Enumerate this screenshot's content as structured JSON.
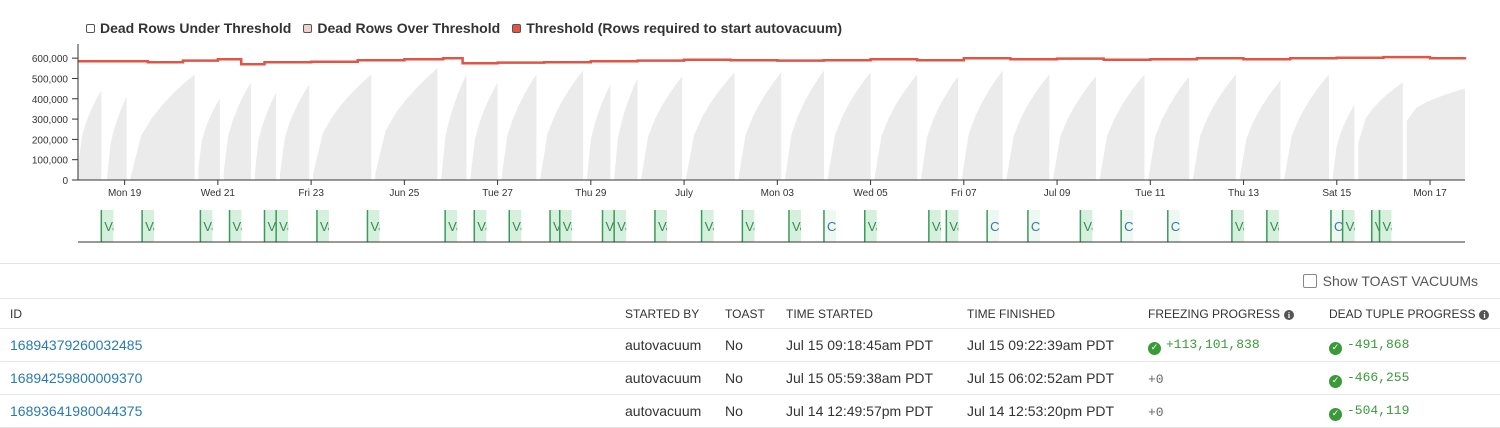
{
  "colors": {
    "under_threshold": "#ebebeb",
    "over_threshold": "#f0cfcf",
    "threshold_line": "#e05545",
    "vacuum_marker_fill": "#d6f0de",
    "vacuum_marker_stroke": "#3a9a5a",
    "link": "#2a7ab0",
    "success": "#3a9a3a"
  },
  "legend": [
    {
      "label": "Dead Rows Under Threshold",
      "color": "#ffffff"
    },
    {
      "label": "Dead Rows Over Threshold",
      "color": "#f0cfcf"
    },
    {
      "label": "Threshold (Rows required to start autovacuum)",
      "color": "#e05545"
    }
  ],
  "chart_data": {
    "type": "area",
    "ylim": [
      0,
      650000
    ],
    "y_ticks": [
      0,
      100000,
      200000,
      300000,
      400000,
      500000,
      600000
    ],
    "y_tick_labels": [
      "0",
      "100,000",
      "200,000",
      "300,000",
      "400,000",
      "500,000",
      "600,000"
    ],
    "x_start": "2023-06-18",
    "x_end": "2023-07-17 18:00",
    "x_ticks": [
      "2023-06-19",
      "2023-06-21",
      "2023-06-23",
      "2023-06-25",
      "2023-06-27",
      "2023-06-29",
      "2023-07-01",
      "2023-07-03",
      "2023-07-05",
      "2023-07-07",
      "2023-07-09",
      "2023-07-11",
      "2023-07-13",
      "2023-07-15",
      "2023-07-17"
    ],
    "x_tick_labels": [
      "Mon 19",
      "Wed 21",
      "Fri 23",
      "Jun 25",
      "Tue 27",
      "Thu 29",
      "July",
      "Mon 03",
      "Wed 05",
      "Fri 07",
      "Jul 09",
      "Tue 11",
      "Thu 13",
      "Sat 15",
      "Mon 17"
    ],
    "threshold": {
      "name": "Threshold (Rows required to start autovacuum)",
      "points": [
        [
          "2023-06-18 00:00",
          585000
        ],
        [
          "2023-06-19 12:00",
          580000
        ],
        [
          "2023-06-20 06:00",
          588000
        ],
        [
          "2023-06-21 00:00",
          595000
        ],
        [
          "2023-06-21 12:00",
          570000
        ],
        [
          "2023-06-22 00:00",
          580000
        ],
        [
          "2023-06-23 00:00",
          582000
        ],
        [
          "2023-06-24 00:00",
          590000
        ],
        [
          "2023-06-25 00:00",
          595000
        ],
        [
          "2023-06-25 20:00",
          600000
        ],
        [
          "2023-06-26 06:00",
          575000
        ],
        [
          "2023-06-27 00:00",
          578000
        ],
        [
          "2023-06-28 00:00",
          580000
        ],
        [
          "2023-06-29 00:00",
          585000
        ],
        [
          "2023-06-30 00:00",
          588000
        ],
        [
          "2023-07-01 00:00",
          592000
        ],
        [
          "2023-07-02 00:00",
          590000
        ],
        [
          "2023-07-03 00:00",
          588000
        ],
        [
          "2023-07-04 00:00",
          590000
        ],
        [
          "2023-07-05 00:00",
          595000
        ],
        [
          "2023-07-06 00:00",
          590000
        ],
        [
          "2023-07-07 00:00",
          600000
        ],
        [
          "2023-07-08 00:00",
          595000
        ],
        [
          "2023-07-09 00:00",
          598000
        ],
        [
          "2023-07-10 00:00",
          592000
        ],
        [
          "2023-07-11 00:00",
          595000
        ],
        [
          "2023-07-12 00:00",
          600000
        ],
        [
          "2023-07-13 00:00",
          595000
        ],
        [
          "2023-07-14 00:00",
          600000
        ],
        [
          "2023-07-15 00:00",
          602000
        ],
        [
          "2023-07-16 00:00",
          605000
        ],
        [
          "2023-07-17 00:00",
          600000
        ],
        [
          "2023-07-17 18:00",
          605000
        ]
      ]
    },
    "dead_rows_cycles": [
      [
        "2023-06-18 00:00",
        "2023-06-18 12:00",
        60000,
        440000
      ],
      [
        "2023-06-18 15:00",
        "2023-06-19 01:00",
        10000,
        410000
      ],
      [
        "2023-06-19 03:00",
        "2023-06-20 12:00",
        10000,
        520000
      ],
      [
        "2023-06-20 14:00",
        "2023-06-21 01:00",
        60000,
        400000
      ],
      [
        "2023-06-21 03:00",
        "2023-06-21 17:00",
        40000,
        480000
      ],
      [
        "2023-06-21 19:00",
        "2023-06-22 06:00",
        30000,
        430000
      ],
      [
        "2023-06-22 08:00",
        "2023-06-22 23:00",
        30000,
        470000
      ],
      [
        "2023-06-23 01:00",
        "2023-06-24 07:00",
        30000,
        520000
      ],
      [
        "2023-06-24 09:00",
        "2023-06-25 17:00",
        30000,
        550000
      ],
      [
        "2023-06-25 19:00",
        "2023-06-26 08:00",
        10000,
        520000
      ],
      [
        "2023-06-26 10:00",
        "2023-06-27 00:00",
        10000,
        480000
      ],
      [
        "2023-06-27 02:00",
        "2023-06-27 20:00",
        10000,
        520000
      ],
      [
        "2023-06-27 22:00",
        "2023-06-28 20:00",
        10000,
        540000
      ],
      [
        "2023-06-28 22:00",
        "2023-06-29 10:00",
        10000,
        470000
      ],
      [
        "2023-06-29 12:00",
        "2023-06-30 00:00",
        10000,
        500000
      ],
      [
        "2023-06-30 02:00",
        "2023-06-30 23:00",
        10000,
        510000
      ],
      [
        "2023-07-01 01:00",
        "2023-07-02 02:00",
        10000,
        530000
      ],
      [
        "2023-07-02 04:00",
        "2023-07-03 02:00",
        10000,
        530000
      ],
      [
        "2023-07-03 04:00",
        "2023-07-04 00:00",
        10000,
        540000
      ],
      [
        "2023-07-04 02:00",
        "2023-07-05 00:00",
        10000,
        530000
      ],
      [
        "2023-07-05 02:00",
        "2023-07-06 00:00",
        10000,
        520000
      ],
      [
        "2023-07-06 02:00",
        "2023-07-06 21:00",
        10000,
        510000
      ],
      [
        "2023-07-06 23:00",
        "2023-07-07 20:00",
        10000,
        540000
      ],
      [
        "2023-07-07 22:00",
        "2023-07-08 20:00",
        10000,
        520000
      ],
      [
        "2023-07-08 22:00",
        "2023-07-09 20:00",
        10000,
        510000
      ],
      [
        "2023-07-09 22:00",
        "2023-07-10 21:00",
        10000,
        520000
      ],
      [
        "2023-07-10 23:00",
        "2023-07-11 20:00",
        10000,
        510000
      ],
      [
        "2023-07-11 22:00",
        "2023-07-12 20:00",
        10000,
        520000
      ],
      [
        "2023-07-12 22:00",
        "2023-07-13 19:00",
        10000,
        490000
      ],
      [
        "2023-07-13 21:00",
        "2023-07-14 20:00",
        10000,
        520000
      ],
      [
        "2023-07-14 22:00",
        "2023-07-15 09:00",
        20000,
        370000
      ],
      [
        "2023-07-15 11:00",
        "2023-07-16 10:00",
        180000,
        480000
      ],
      [
        "2023-07-16 12:00",
        "2023-07-17 18:00",
        290000,
        450000
      ]
    ],
    "vacuum_markers": [
      {
        "time": "2023-06-18 12:00",
        "label": "Vacuum"
      },
      {
        "time": "2023-06-19 09:00",
        "label": "Vacuum"
      },
      {
        "time": "2023-06-20 15:00",
        "label": "Vacuum"
      },
      {
        "time": "2023-06-21 06:00",
        "label": "Vacuum"
      },
      {
        "time": "2023-06-22 00:00",
        "label": "Vacuum"
      },
      {
        "time": "2023-06-22 06:00",
        "label": "Vacuum"
      },
      {
        "time": "2023-06-23 03:00",
        "label": "Vacuum"
      },
      {
        "time": "2023-06-24 05:00",
        "label": "Vacuum"
      },
      {
        "time": "2023-06-25 21:00",
        "label": "Vacuum"
      },
      {
        "time": "2023-06-26 12:00",
        "label": "Vacuum"
      },
      {
        "time": "2023-06-27 06:00",
        "label": "Vacuum"
      },
      {
        "time": "2023-06-28 03:00",
        "label": "Vacuum"
      },
      {
        "time": "2023-06-28 08:00",
        "label": "Vacuum"
      },
      {
        "time": "2023-06-29 06:00",
        "label": "Vacuum"
      },
      {
        "time": "2023-06-29 12:00",
        "label": "Vacuum"
      },
      {
        "time": "2023-06-30 09:00",
        "label": "Vacuum"
      },
      {
        "time": "2023-07-01 09:00",
        "label": "Vacuum"
      },
      {
        "time": "2023-07-02 06:00",
        "label": "Vacuum"
      },
      {
        "time": "2023-07-03 06:00",
        "label": "Vacuum"
      },
      {
        "time": "2023-07-04 00:00",
        "label": "Cancelled"
      },
      {
        "time": "2023-07-04 21:00",
        "label": "Vacuum"
      },
      {
        "time": "2023-07-06 06:00",
        "label": "Vacuum"
      },
      {
        "time": "2023-07-06 15:00",
        "label": "Vacuum"
      },
      {
        "time": "2023-07-07 12:00",
        "label": "Cancelled"
      },
      {
        "time": "2023-07-08 09:00",
        "label": "Cancelled"
      },
      {
        "time": "2023-07-09 12:00",
        "label": "Vacuum"
      },
      {
        "time": "2023-07-10 09:00",
        "label": "Cancelled"
      },
      {
        "time": "2023-07-11 09:00",
        "label": "Cancelled"
      },
      {
        "time": "2023-07-12 18:00",
        "label": "Vacuum"
      },
      {
        "time": "2023-07-13 12:00",
        "label": "Vacuum"
      },
      {
        "time": "2023-07-14 21:00",
        "label": "Cancelled"
      },
      {
        "time": "2023-07-15 03:00",
        "label": "Vacuum"
      },
      {
        "time": "2023-07-15 18:00",
        "label": "Vacuum"
      },
      {
        "time": "2023-07-15 22:00",
        "label": "Vacuum"
      }
    ]
  },
  "toast_toggle": {
    "label": "Show TOAST VACUUMs",
    "checked": false
  },
  "table": {
    "columns": {
      "id": "ID",
      "started_by": "STARTED BY",
      "toast": "TOAST",
      "time_started": "TIME STARTED",
      "time_finished": "TIME FINISHED",
      "freezing_progress": "FREEZING PROGRESS",
      "dead_tuple_progress": "DEAD TUPLE PROGRESS"
    },
    "rows": [
      {
        "id": "16894379260032485",
        "started_by": "autovacuum",
        "toast": "No",
        "time_started": "Jul 15 09:18:45am PDT",
        "time_finished": "Jul 15 09:22:39am PDT",
        "freezing": "+113,101,838",
        "freezing_positive": true,
        "dead_tuple": "-491,868",
        "dead_tuple_positive": true
      },
      {
        "id": "16894259800009370",
        "started_by": "autovacuum",
        "toast": "No",
        "time_started": "Jul 15 05:59:38am PDT",
        "time_finished": "Jul 15 06:02:52am PDT",
        "freezing": "+0",
        "freezing_positive": false,
        "dead_tuple": "-466,255",
        "dead_tuple_positive": true
      },
      {
        "id": "16893641980044375",
        "started_by": "autovacuum",
        "toast": "No",
        "time_started": "Jul 14 12:49:57pm PDT",
        "time_finished": "Jul 14 12:53:20pm PDT",
        "freezing": "+0",
        "freezing_positive": false,
        "dead_tuple": "-504,119",
        "dead_tuple_positive": true
      }
    ]
  }
}
